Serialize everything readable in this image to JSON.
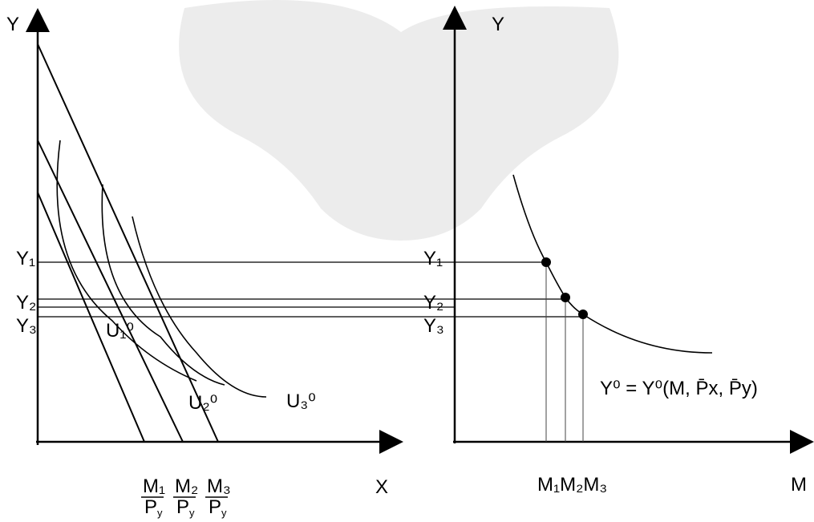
{
  "left_panel": {
    "y_axis_label": "Y",
    "x_axis_label": "X",
    "y_levels": [
      "Y₁",
      "Y₂",
      "Y₃"
    ],
    "curves": [
      "U₁⁰",
      "U₂⁰",
      "U₃⁰"
    ],
    "budget_intercepts": [
      {
        "numerator": "M₁",
        "denominator": {
          "base": "P",
          "sub": "y"
        }
      },
      {
        "numerator": "M₂",
        "denominator": {
          "base": "P",
          "sub": "y"
        }
      },
      {
        "numerator": "M₃",
        "denominator": {
          "base": "P",
          "sub": "y"
        }
      }
    ]
  },
  "right_panel": {
    "y_axis_label": "Y",
    "x_axis_label": "M",
    "y_levels": [
      "Y₁",
      "Y₂",
      "Y₃"
    ],
    "m_levels": "M₁M₂M₃",
    "equation": "Y⁰ = Y⁰(M, P̄x, P̄y)"
  }
}
